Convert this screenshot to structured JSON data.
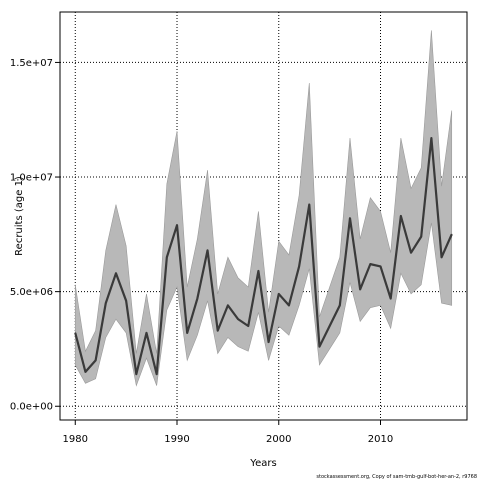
{
  "chart_data": {
    "type": "line",
    "title": "",
    "xlabel": "Years",
    "ylabel": "Recruits (age 1)",
    "xlim": [
      1978.5,
      2018.5
    ],
    "ylim": [
      -600000,
      17200000
    ],
    "x_ticks": [
      1980,
      1990,
      2000,
      2010
    ],
    "y_ticks": [
      0,
      5000000,
      10000000,
      15000000
    ],
    "x_tick_labels": [
      "1980",
      "1990",
      "2000",
      "2010"
    ],
    "y_tick_labels": [
      "0.0e+00",
      "5.0e+06",
      "1.0e+07",
      "1.5e+07"
    ],
    "grid": true,
    "legend": "none",
    "colors": {
      "line": "#3a3a3a",
      "band": "#b8b8b8",
      "band_edge": "#9a9a9a"
    },
    "x": [
      1980,
      1981,
      1982,
      1983,
      1984,
      1985,
      1986,
      1987,
      1988,
      1989,
      1990,
      1991,
      1992,
      1993,
      1994,
      1995,
      1996,
      1997,
      1998,
      1999,
      2000,
      2001,
      2002,
      2003,
      2004,
      2005,
      2006,
      2007,
      2008,
      2009,
      2010,
      2011,
      2012,
      2013,
      2014,
      2015,
      2016,
      2017
    ],
    "series": [
      {
        "values": [
          3200000,
          1500000,
          2000000,
          4500000,
          5800000,
          4600000,
          1400000,
          3200000,
          1400000,
          6500000,
          7900000,
          3200000,
          4700000,
          6800000,
          3300000,
          4400000,
          3800000,
          3500000,
          5900000,
          2800000,
          4900000,
          4400000,
          6100000,
          8800000,
          2600000,
          3500000,
          4400000,
          8200000,
          5100000,
          6200000,
          6100000,
          4700000,
          8300000,
          6700000,
          7400000,
          11700000,
          6500000,
          7500000
        ],
        "lower": [
          1800000,
          1000000,
          1200000,
          3000000,
          3800000,
          3200000,
          900000,
          2100000,
          900000,
          4200000,
          5200000,
          2000000,
          3100000,
          4600000,
          2300000,
          3000000,
          2600000,
          2400000,
          4100000,
          2000000,
          3500000,
          3100000,
          4400000,
          6000000,
          1800000,
          2500000,
          3200000,
          5400000,
          3700000,
          4300000,
          4400000,
          3400000,
          5800000,
          4900000,
          5300000,
          8000000,
          4500000,
          4400000
        ],
        "upper": [
          5300000,
          2400000,
          3300000,
          6800000,
          8800000,
          7000000,
          2300000,
          4900000,
          2300000,
          9700000,
          12000000,
          5200000,
          7300000,
          10300000,
          4900000,
          6500000,
          5600000,
          5200000,
          8500000,
          4100000,
          7200000,
          6600000,
          9200000,
          14100000,
          3900000,
          5200000,
          6500000,
          11700000,
          7300000,
          9100000,
          8500000,
          6700000,
          11700000,
          9500000,
          10400000,
          16400000,
          9600000,
          12900000
        ]
      }
    ],
    "footer_text": "stockassessment.org, Copy of sam-tmb-gulf-bot-her-an-2, r9768"
  }
}
